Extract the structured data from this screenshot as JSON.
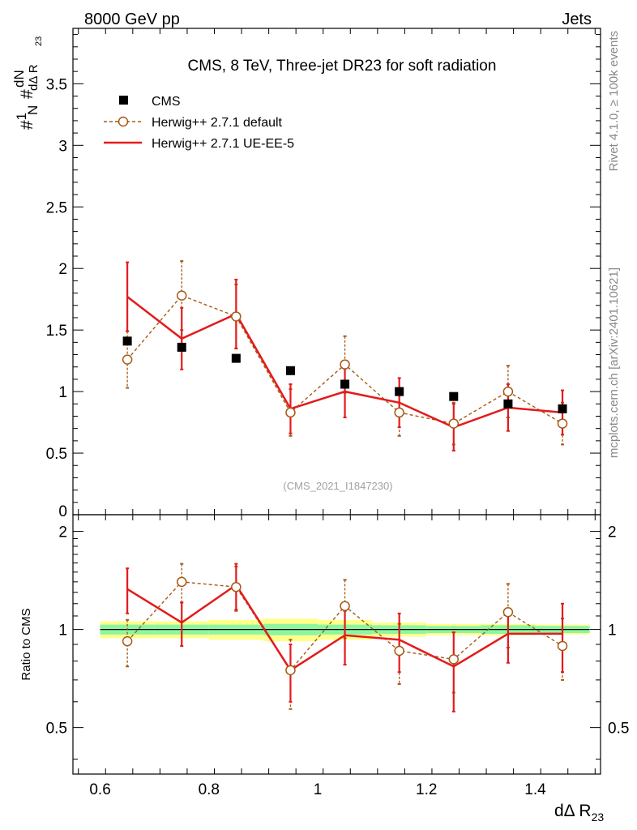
{
  "header": {
    "beam": "8000 GeV pp",
    "category": "Jets"
  },
  "side": {
    "rivet": "Rivet 4.1.0, ≥ 100k events",
    "site": "mcplots.cern.ch [arXiv:2401.10621]"
  },
  "chart_data": [
    {
      "type": "scatter",
      "panel": "main",
      "title": "CMS, 8 TeV, Three-jet DR23 for soft radiation",
      "watermark": "(CMS_2021_I1847230)",
      "xlabel": "Δ R23",
      "ylabel": "1/N dN/dΔ R23",
      "ylabel_parts": {
        "n": "1",
        "d": "N",
        "nd": "dN",
        "dd": "dΔ R",
        "sub": "23",
        "hash": "#"
      },
      "xlim": [
        0.55,
        1.52
      ],
      "ylim": [
        0,
        3.95
      ],
      "yticks": [
        0,
        0.5,
        1,
        1.5,
        2,
        2.5,
        3,
        3.5
      ],
      "ytick_labels": [
        "0",
        "0.5",
        "1",
        "1.5",
        "2",
        "2.5",
        "3",
        "3.5"
      ],
      "x": [
        0.65,
        0.75,
        0.85,
        0.95,
        1.05,
        1.15,
        1.25,
        1.35,
        1.45
      ],
      "series": [
        {
          "name": "CMS",
          "style": "markers",
          "color": "#000000",
          "values": [
            1.41,
            1.36,
            1.27,
            1.17,
            1.06,
            1.0,
            0.96,
            0.9,
            0.86
          ]
        },
        {
          "name": "Herwig++ 2.7.1 default",
          "style": "dashed-open-circle",
          "color": "#a55a14",
          "values": [
            1.26,
            1.78,
            1.61,
            0.83,
            1.22,
            0.83,
            0.74,
            1.0,
            0.74
          ],
          "err": [
            0.23,
            0.28,
            0.26,
            0.19,
            0.23,
            0.19,
            0.17,
            0.21,
            0.17
          ]
        },
        {
          "name": "Herwig++ 2.7.1 UE-EE-5",
          "style": "solid-line",
          "color": "#e41a1c",
          "values": [
            1.77,
            1.43,
            1.63,
            0.86,
            1.0,
            0.91,
            0.71,
            0.87,
            0.83
          ],
          "err": [
            0.28,
            0.25,
            0.28,
            0.2,
            0.21,
            0.2,
            0.19,
            0.19,
            0.18
          ]
        }
      ]
    },
    {
      "type": "scatter",
      "panel": "ratio",
      "ylabel": "Ratio to CMS",
      "xlabel": "Δ R23",
      "xlim": [
        0.55,
        1.52
      ],
      "ylim": [
        0.36,
        2.25
      ],
      "yscale": "log",
      "xticks": [
        0.6,
        0.8,
        1.0,
        1.2,
        1.4
      ],
      "xtick_labels": [
        "0.6",
        "0.8",
        "1",
        "1.2",
        "1.4"
      ],
      "yticks": [
        0.5,
        1,
        2
      ],
      "ytick_labels": [
        "0.5",
        "1",
        "2"
      ],
      "x": [
        0.65,
        0.75,
        0.85,
        0.95,
        1.05,
        1.15,
        1.25,
        1.35,
        1.45
      ],
      "band_inner": [
        0.035,
        0.035,
        0.035,
        0.04,
        0.035,
        0.03,
        0.025,
        0.03,
        0.025
      ],
      "band_outer": [
        0.06,
        0.06,
        0.07,
        0.08,
        0.07,
        0.05,
        0.04,
        0.04,
        0.035
      ],
      "series": [
        {
          "name": "Herwig++ 2.7.1 default",
          "color": "#a55a14",
          "values": [
            0.92,
            1.4,
            1.35,
            0.75,
            1.18,
            0.86,
            0.81,
            1.13,
            0.89
          ],
          "err": [
            0.15,
            0.19,
            0.21,
            0.18,
            0.24,
            0.18,
            0.17,
            0.25,
            0.19
          ]
        },
        {
          "name": "Herwig++ 2.7.1 UE-EE-5",
          "color": "#e41a1c",
          "values": [
            1.33,
            1.05,
            1.37,
            0.75,
            0.96,
            0.93,
            0.77,
            0.97,
            0.97
          ],
          "err": [
            0.21,
            0.16,
            0.22,
            0.15,
            0.18,
            0.19,
            0.21,
            0.18,
            0.23
          ]
        }
      ]
    }
  ]
}
